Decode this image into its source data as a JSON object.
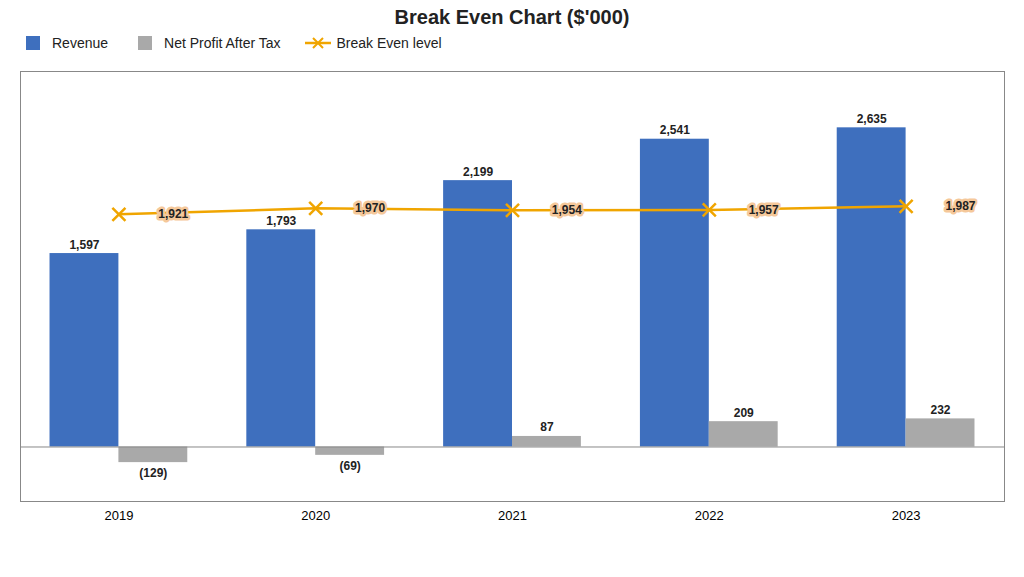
{
  "chart_data": {
    "type": "bar",
    "title": "Break Even Chart ($'000)",
    "categories": [
      "2019",
      "2020",
      "2021",
      "2022",
      "2023"
    ],
    "series": [
      {
        "name": "Revenue",
        "type": "bar",
        "color": "#3e6fbe",
        "values": [
          1597,
          1793,
          2199,
          2541,
          2635
        ],
        "value_labels": [
          "1,597",
          "1,793",
          "2,199",
          "2,541",
          "2,635"
        ]
      },
      {
        "name": "Net Profit After Tax",
        "type": "bar",
        "color": "#a9a9a9",
        "values": [
          -129,
          -69,
          87,
          209,
          232
        ],
        "value_labels": [
          "(129)",
          "(69)",
          "87",
          "209",
          "232"
        ]
      },
      {
        "name": "Break Even level",
        "type": "line",
        "color": "#f0a500",
        "marker": "x",
        "values": [
          1921,
          1970,
          1954,
          1957,
          1987
        ],
        "value_labels": [
          "1,921",
          "1,970",
          "1,954",
          "1,957",
          "1,987"
        ]
      }
    ],
    "ylim": [
      -450,
      3100
    ],
    "data_labels": true,
    "tick_labels": "x",
    "legend": "upper left",
    "grid": false
  }
}
